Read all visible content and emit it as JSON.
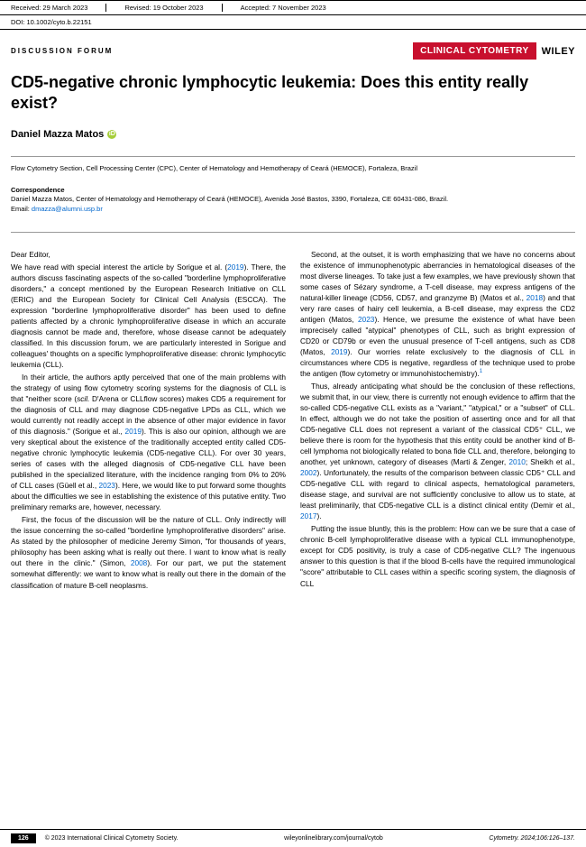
{
  "header": {
    "received": "Received: 29 March 2023",
    "revised": "Revised: 19 October 2023",
    "accepted": "Accepted: 7 November 2023",
    "doi": "DOI: 10.1002/cyto.b.22151"
  },
  "section_label": "DISCUSSION FORUM",
  "journal_badge": "CLINICAL CYTOMETRY",
  "journal_publisher": "WILEY",
  "title": "CD5-negative chronic lymphocytic leukemia: Does this entity really exist?",
  "author": "Daniel Mazza Matos",
  "affiliation": "Flow Cytometry Section, Cell Processing Center (CPC), Center of Hematology and Hemotherapy of Ceará (HEMOCE), Fortaleza, Brazil",
  "correspondence": {
    "label": "Correspondence",
    "text": "Daniel Mazza Matos, Center of Hematology and Hemotherapy of Ceará (HEMOCE), Avenida José Bastos, 3390, Fortaleza, CE 60431-086, Brazil.",
    "email_label": "Email: ",
    "email": "dmazza@alumni.usp.br"
  },
  "body": {
    "salutation": "Dear Editor,",
    "p1a": "We have read with special interest the article by Sorigue et al. (",
    "p1cite1": "2019",
    "p1b": "). There, the authors discuss fascinating aspects of the so-called \"borderline lymphoproliferative disorders,\" a concept mentioned by the European Research Initiative on CLL (ERIC) and the European Society for Clinical Cell Analysis (ESCCA). The expression \"borderline lymphoproliferative disorder\" has been used to define patients affected by a chronic lymphoproliferative disease in which an accurate diagnosis cannot be made and, therefore, whose disease cannot be adequately classified. In this discussion forum, we are particularly interested in Sorigue and colleagues' thoughts on a specific lymphoproliferative disease: chronic lymphocytic leukemia (CLL).",
    "p2a": "In their article, the authors aptly perceived that one of the main problems with the strategy of using flow cytometry scoring systems for the diagnosis of CLL is that \"neither score (",
    "p2i": "scil.",
    "p2b": " D'Arena or CLLflow scores) makes CD5 a requirement for the diagnosis of CLL and may diagnose CD5-negative LPDs as CLL, which we would currently not readily accept in the absence of other major evidence in favor of this diagnosis.\" (Sorigue et al., ",
    "p2cite1": "2019",
    "p2c": "). This is also our opinion, although we are very skeptical about the existence of the traditionally accepted entity called CD5-negative chronic lymphocytic leukemia (CD5-negative CLL). For over 30 years, series of cases with the alleged diagnosis of CD5-negative CLL have been published in the specialized literature, with the incidence ranging from 0% to 20% of CLL cases (Güell et al., ",
    "p2cite2": "2023",
    "p2d": "). Here, we would like to put forward some thoughts about the difficulties we see in establishing the existence of this putative entity. Two preliminary remarks are, however, necessary.",
    "p3a": "First, the focus of the discussion will be the nature of CLL. Only indirectly will the issue concerning the so-called \"borderline lymphoproliferative disorders\" arise. As stated by the philosopher of medicine Jeremy Simon, \"for thousands of years, philosophy has been asking what is really out there. I want to know what is really out there in the clinic.\" (Simon, ",
    "p3cite1": "2008",
    "p3b": "). For our part, we put the statement somewhat differently: we want to know what is really out there in the domain of the classification of mature B-cell neoplasms.",
    "p4a": "Second, at the outset, it is worth emphasizing that we have no concerns about the existence of immunophenotypic aberrancies in hematological diseases of the most diverse lineages. To take just a few examples, we have previously shown that some cases of Sézary syndrome, a T-cell disease, may express antigens of the natural-killer lineage (CD56, CD57, and granzyme B) (Matos et al., ",
    "p4cite1": "2018",
    "p4b": ") and that very rare cases of hairy cell leukemia, a B-cell disease, may express the CD2 antigen (Matos, ",
    "p4cite2": "2023",
    "p4c": "). Hence, we presume the existence of what have been imprecisely called \"atypical\" phenotypes of CLL, such as bright expression of CD20 or CD79b or even the unusual presence of T-cell antigens, such as CD8 (Matos, ",
    "p4cite3": "2019",
    "p4d": "). Our worries relate exclusively to the diagnosis of CLL in circumstances where CD5 is negative, regardless of the technique used to probe the antigen (flow cytometry or immunohistochemistry).",
    "sup1": "1",
    "p5a": "Thus, already anticipating what should be the conclusion of these reflections, we submit that, in our view, there is currently not enough evidence to affirm that the so-called CD5-negative CLL exists as a \"variant,\" \"atypical,\" or a \"subset\" of CLL. In effect, although we do not take the position of asserting once and for all that CD5-negative CLL does not represent a variant of the classical CD5⁺ CLL, we believe there is room for the hypothesis that this entity could be another kind of B-cell lymphoma not biologically related to bona fide CLL and, therefore, belonging to another, yet unknown, category of diseases (Marti & Zenger, ",
    "p5cite1": "2010",
    "p5b": "; Sheikh et al., ",
    "p5cite2": "2002",
    "p5c": "). Unfortunately, the results of the comparison between classic CD5⁺ CLL and CD5-negative CLL with regard to clinical aspects, hematological parameters, disease stage, and survival are not sufficiently conclusive to allow us to state, at least preliminarily, that CD5-negative CLL is a distinct clinical entity (Demir et al., ",
    "p5cite3": "2017",
    "p5d": ").",
    "p6": "Putting the issue bluntly, this is the problem: How can we be sure that a case of chronic B-cell lymphoproliferative disease with a typical CLL immunophenotype, except for CD5 positivity, is truly a case of CD5-negative CLL? The ingenuous answer to this question is that if the blood B-cells have the required immunological \"score\" attributable to CLL cases within a specific scoring system, the diagnosis of CLL"
  },
  "footer": {
    "page": "126",
    "copyright": "© 2023 International Clinical Cytometry Society.",
    "url": "wileyonlinelibrary.com/journal/cytob",
    "citation": "Cytometry. 2024;106:126–137."
  }
}
